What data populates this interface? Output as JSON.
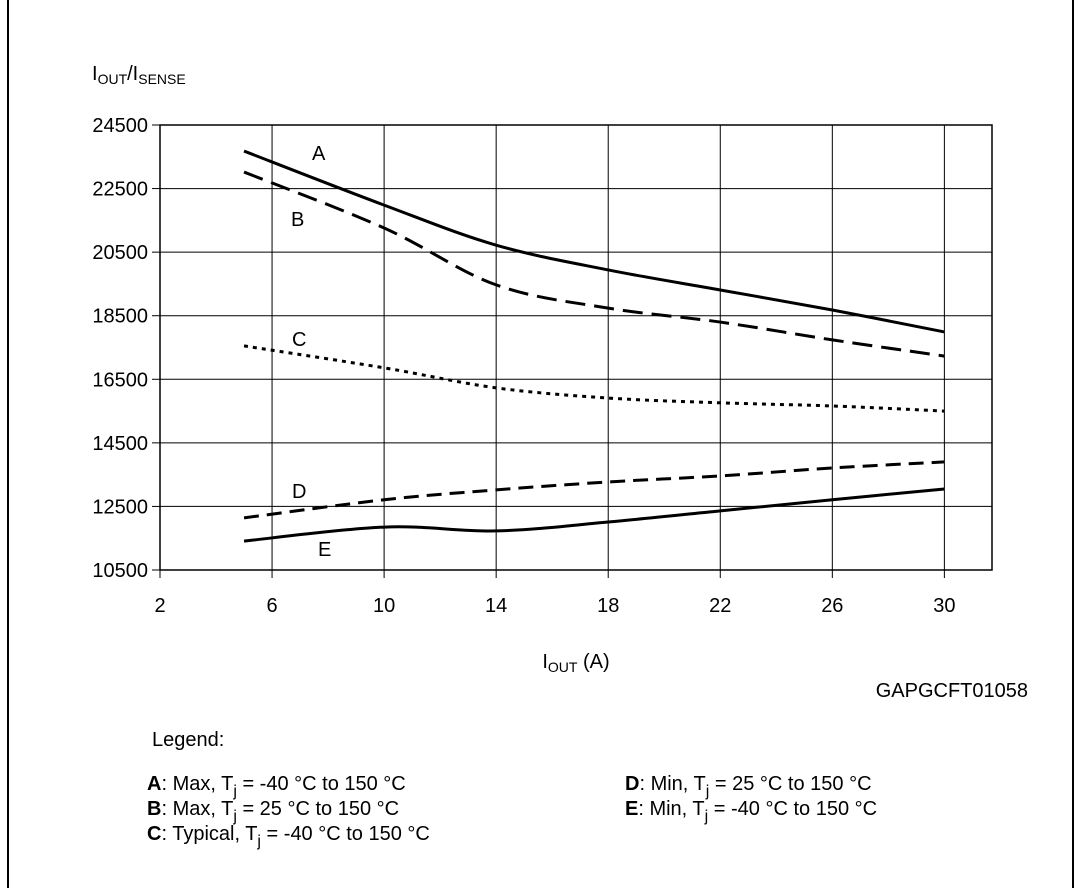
{
  "chart_data": {
    "type": "line",
    "y_label": [
      "I",
      "OUT",
      "/I",
      "SENSE"
    ],
    "x_label": [
      "I",
      "OUT",
      " (A)"
    ],
    "source": "GAPGCFT01058",
    "x": [
      5,
      10,
      14,
      18,
      22,
      26,
      30
    ],
    "series": [
      {
        "name": "A",
        "color": "#000000",
        "style": "solid",
        "values": [
          23680,
          21980,
          20720,
          19940,
          19310,
          18680,
          17990
        ]
      },
      {
        "name": "B",
        "color": "#000000",
        "style": "longdash",
        "values": [
          23020,
          21260,
          19470,
          18740,
          18300,
          17740,
          17230
        ]
      },
      {
        "name": "C",
        "color": "#000000",
        "style": "dotted",
        "values": [
          17550,
          16860,
          16230,
          15910,
          15760,
          15660,
          15500
        ]
      },
      {
        "name": "D",
        "color": "#000000",
        "style": "dashed",
        "values": [
          12140,
          12710,
          13020,
          13270,
          13460,
          13710,
          13900
        ]
      },
      {
        "name": "E",
        "color": "#000000",
        "style": "solid",
        "values": [
          11410,
          11850,
          11730,
          12010,
          12360,
          12710,
          13050
        ]
      }
    ],
    "xlim": [
      2,
      31.7
    ],
    "xticks": [
      2,
      6,
      10,
      14,
      18,
      22,
      26,
      30
    ],
    "ylim": [
      10500,
      24500
    ],
    "yticks": [
      10500,
      12500,
      14500,
      16500,
      18500,
      20500,
      22500,
      24500
    ],
    "grid": true,
    "legend_title": "Legend:",
    "legend_items": [
      [
        ": Max, T",
        "j",
        " = -40 °C to 150 °C"
      ],
      [
        ": Max, T",
        "j",
        " = 25 °C to 150 °C"
      ],
      [
        ": Typical, T",
        "j",
        " = -40 °C to 150 °C"
      ],
      [
        ": Min, T",
        "j",
        " = 25 °C to 150 °C"
      ],
      [
        ": Min, T",
        "j",
        " = -40 °C to 150 °C"
      ]
    ]
  }
}
